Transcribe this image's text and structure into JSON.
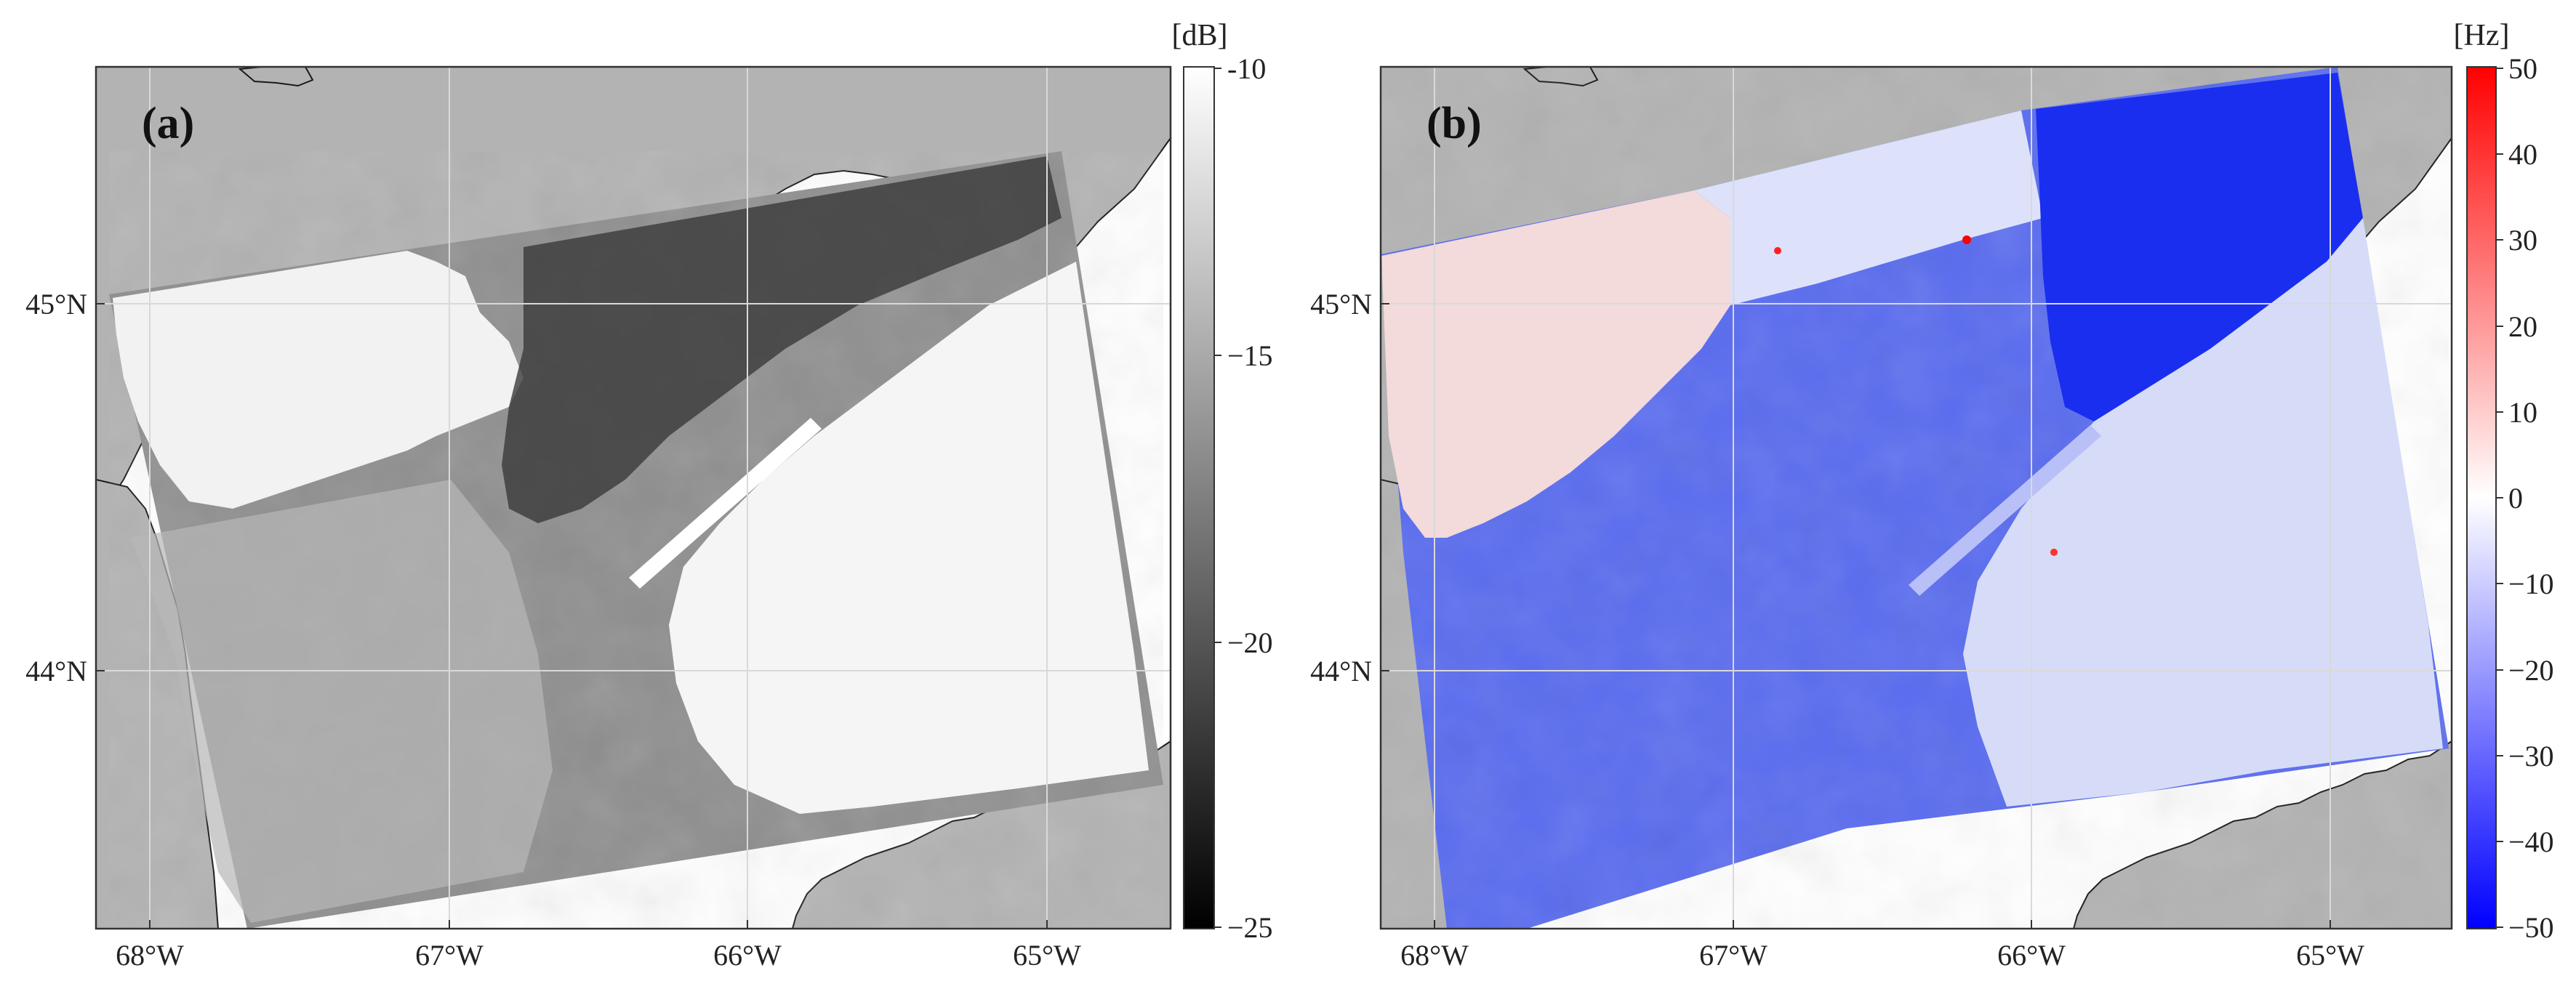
{
  "panels": [
    {
      "label": "(a)",
      "colorbar": {
        "unit": "[dB]",
        "ticks": [
          "-10",
          "−15",
          "−20",
          "−25"
        ],
        "min": -25,
        "max": -10,
        "colors": [
          "#000000",
          "#ffffff"
        ]
      }
    },
    {
      "label": "(b)",
      "colorbar": {
        "unit": "[Hz]",
        "ticks": [
          "50",
          "40",
          "30",
          "20",
          "10",
          "0",
          "−10",
          "−20",
          "−30",
          "−40",
          "−50"
        ],
        "min": -50,
        "max": 50,
        "colors": [
          "#0000ff",
          "#ffffff",
          "#ff0000"
        ]
      }
    }
  ],
  "lon_ticks": [
    "68°W",
    "67°W",
    "66°W",
    "65°W"
  ],
  "lat_ticks": [
    "45°N",
    "44°N"
  ],
  "colors": {
    "land": "#b3b3b3",
    "coast": "#1a1a1a",
    "grid": "#d9d9d9"
  }
}
